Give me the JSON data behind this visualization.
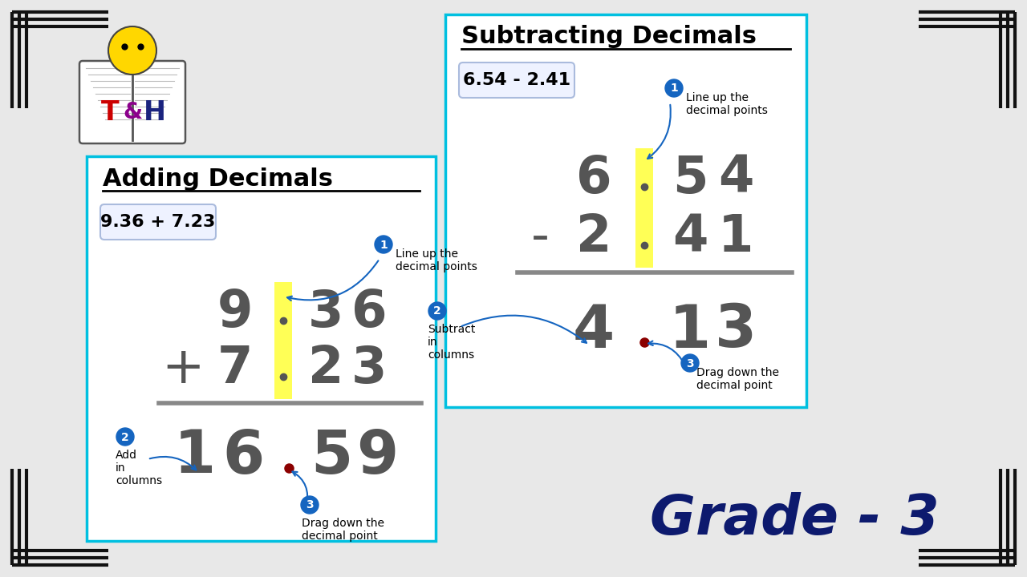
{
  "bg_color": "#e8e8e8",
  "outer_border_color": "#111111",
  "panel_left": {
    "title": "Adding Decimals",
    "problem": "9.36 + 7.23",
    "step1": "Line up the\ndecimal points",
    "step2": "Add\nin\ncolumns",
    "step3": "Drag down the\ndecimal point"
  },
  "panel_right": {
    "title": "Subtracting Decimals",
    "problem": "6.54 - 2.41",
    "step1": "Line up the\ndecimal points",
    "step2": "Subtract\nin\ncolumns",
    "step3": "Drag down the\ndecimal point"
  },
  "grade_text": "Grade - 3",
  "grade_color": "#0d1a6e",
  "number_color": "#555555",
  "yellow_color": "#ffff44",
  "dot_color": "#8B0000",
  "blue_circle_color": "#1565c0",
  "arrow_color": "#1565c0",
  "panel_border_color": "#00c0e0"
}
